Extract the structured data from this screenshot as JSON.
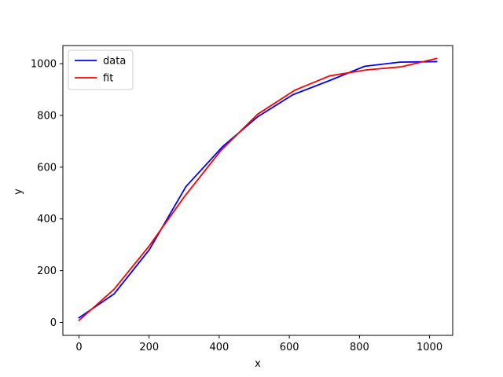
{
  "chart_data": {
    "type": "line",
    "title": "",
    "xlabel": "x",
    "ylabel": "y",
    "xlim": [
      -46,
      1066
    ],
    "ylim": [
      -50,
      1070
    ],
    "xticks": [
      0,
      200,
      400,
      600,
      800,
      1000
    ],
    "yticks": [
      0,
      200,
      400,
      600,
      800,
      1000
    ],
    "grid": false,
    "legend": {
      "placement": "top-left"
    },
    "series": [
      {
        "name": "data",
        "color": "#0000ff",
        "x": [
          0,
          100,
          200,
          305,
          410,
          510,
          610,
          715,
          815,
          915,
          1020
        ],
        "y": [
          18,
          110,
          280,
          525,
          680,
          795,
          880,
          935,
          990,
          1006,
          1008
        ]
      },
      {
        "name": "fit",
        "color": "#ff0000",
        "x": [
          0,
          100,
          200,
          300,
          405,
          510,
          615,
          715,
          820,
          920,
          1020
        ],
        "y": [
          8,
          128,
          295,
          485,
          665,
          805,
          897,
          953,
          976,
          988,
          1020
        ]
      }
    ]
  }
}
